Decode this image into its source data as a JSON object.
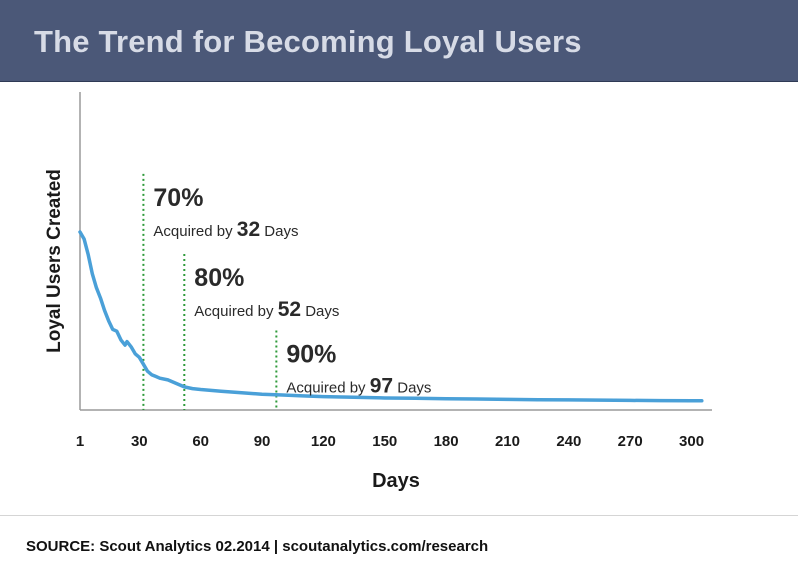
{
  "header": {
    "title": "The Trend for Becoming Loyal Users"
  },
  "footer": {
    "source": "SOURCE: Scout Analytics 02.2014 | scoutanalytics.com/research"
  },
  "colors": {
    "header_bg": "#4b5878",
    "line": "#4aa0d8",
    "marker": "#2e9a3a"
  },
  "chart_data": {
    "type": "line",
    "title": "The Trend for Becoming Loyal Users",
    "xlabel": "Days",
    "ylabel": "Loyal Users Created",
    "x_ticks": [
      "1",
      "30",
      "60",
      "90",
      "120",
      "150",
      "180",
      "210",
      "240",
      "270",
      "300"
    ],
    "xlim": [
      1,
      310
    ],
    "ylim": [
      0,
      100
    ],
    "grid": false,
    "series": [
      {
        "points": [
          [
            1,
            100
          ],
          [
            3,
            96
          ],
          [
            5,
            87
          ],
          [
            7,
            76
          ],
          [
            9,
            68
          ],
          [
            11,
            62
          ],
          [
            13,
            55
          ],
          [
            15,
            49
          ],
          [
            17,
            44
          ],
          [
            19,
            43
          ],
          [
            21,
            38
          ],
          [
            23,
            35
          ],
          [
            24,
            37
          ],
          [
            26,
            34
          ],
          [
            28,
            30
          ],
          [
            30,
            28
          ],
          [
            32,
            24
          ],
          [
            34,
            20
          ],
          [
            36,
            18
          ],
          [
            38,
            17
          ],
          [
            40,
            16
          ],
          [
            44,
            15
          ],
          [
            48,
            13
          ],
          [
            52,
            11
          ],
          [
            56,
            10
          ],
          [
            60,
            9.5
          ],
          [
            70,
            8.5
          ],
          [
            80,
            7.6
          ],
          [
            90,
            6.8
          ],
          [
            100,
            6.3
          ],
          [
            110,
            5.8
          ],
          [
            120,
            5.4
          ],
          [
            135,
            5.0
          ],
          [
            150,
            4.6
          ],
          [
            165,
            4.4
          ],
          [
            180,
            4.2
          ],
          [
            195,
            4.0
          ],
          [
            210,
            3.8
          ],
          [
            225,
            3.6
          ],
          [
            240,
            3.5
          ],
          [
            255,
            3.4
          ],
          [
            270,
            3.2
          ],
          [
            285,
            3.1
          ],
          [
            300,
            3.0
          ],
          [
            305,
            3.0
          ]
        ]
      }
    ],
    "annotations": [
      {
        "day": 32,
        "label_y": 92,
        "percent": "70%",
        "prefix": "Acquired by",
        "days": "32",
        "suffix": "Days"
      },
      {
        "day": 52,
        "label_y": 46,
        "percent": "80%",
        "prefix": "Acquired by",
        "days": "52",
        "suffix": "Days"
      },
      {
        "day": 97,
        "label_y": 2,
        "percent": "90%",
        "prefix": "Acquired by",
        "days": "97",
        "suffix": "Days"
      }
    ]
  }
}
